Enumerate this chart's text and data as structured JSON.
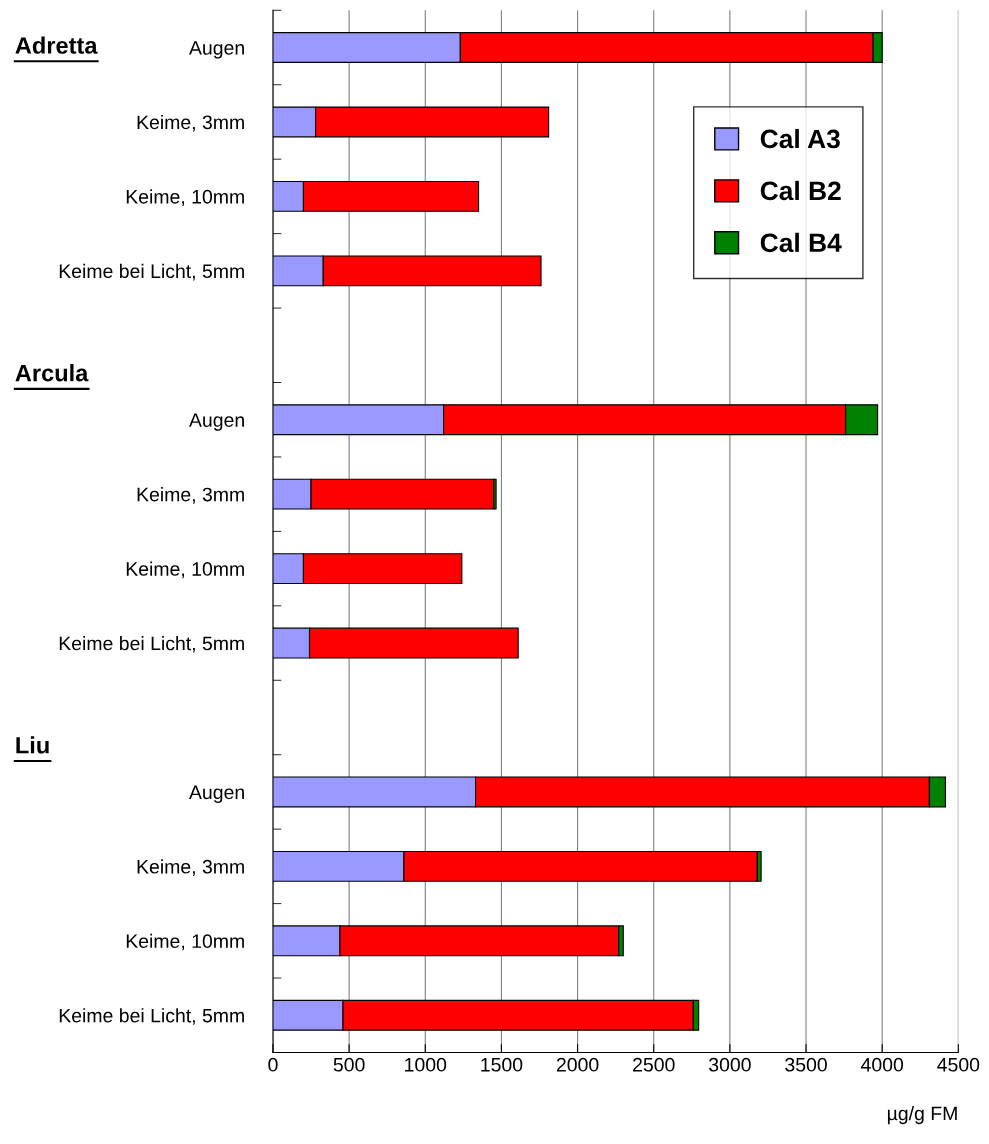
{
  "chart_data": {
    "type": "bar",
    "orientation": "horizontal",
    "stacked": true,
    "categories": [
      "Augen",
      "Keime, 3mm",
      "Keime, 10mm",
      "Keime bei Licht, 5mm",
      null,
      "Augen",
      "Keime, 3mm",
      "Keime, 10mm",
      "Keime bei Licht, 5mm",
      null,
      "Augen",
      "Keime, 3mm",
      "Keime, 10mm",
      "Keime bei Licht, 5mm"
    ],
    "series": [
      {
        "name": "Cal A3",
        "color": "#9999ff",
        "values": [
          1230,
          280,
          200,
          330,
          null,
          1120,
          250,
          200,
          240,
          null,
          1330,
          860,
          440,
          460
        ]
      },
      {
        "name": "Cal B2",
        "color": "#ff0000",
        "values": [
          2710,
          1530,
          1150,
          1430,
          null,
          2640,
          1200,
          1040,
          1370,
          null,
          2980,
          2320,
          1830,
          2300
        ]
      },
      {
        "name": "Cal B4",
        "color": "#008000",
        "values": [
          60,
          null,
          null,
          null,
          null,
          210,
          15,
          null,
          null,
          null,
          105,
          25,
          30,
          35
        ]
      }
    ],
    "xlim": [
      0,
      4500
    ],
    "xticks": [
      0,
      500,
      1000,
      1500,
      2000,
      2500,
      3000,
      3500,
      4000,
      4500
    ],
    "xlabel": "µg/g FM",
    "annotations": [
      "Adretta",
      "Arcula",
      "Liu"
    ],
    "grid": "x",
    "legend": "top right"
  }
}
